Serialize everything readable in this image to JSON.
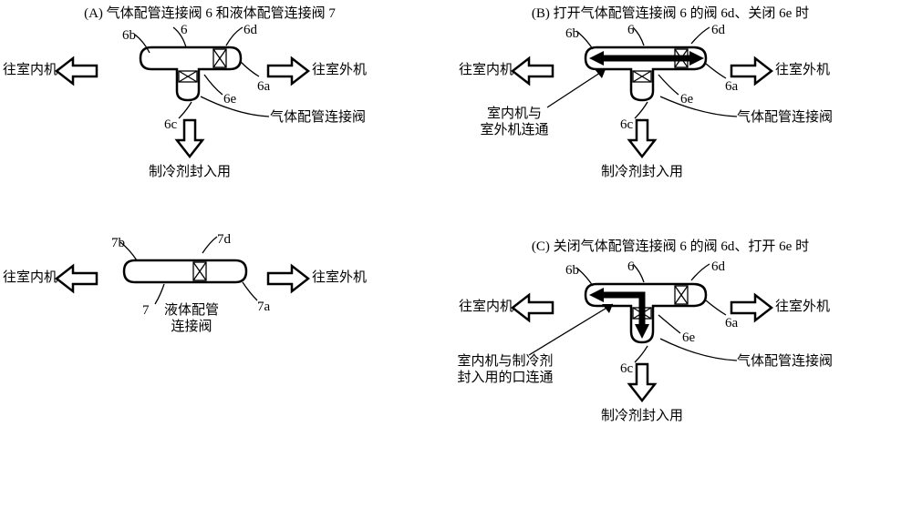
{
  "panelA": {
    "title": "(A) 气体配管连接阀 6 和液体配管连接阀 7",
    "left": "往室内机",
    "right": "往室外机",
    "down": "制冷剂封入用",
    "valveLabel": "气体配管连接阀",
    "parts": {
      "n6": "6",
      "n6a": "6a",
      "n6b": "6b",
      "n6c": "6c",
      "n6d": "6d",
      "n6e": "6e"
    }
  },
  "panelB": {
    "title": "(B) 打开气体配管连接阀 6 的阀 6d、关闭 6e 时",
    "left": "往室内机",
    "right": "往室外机",
    "down": "制冷剂封入用",
    "valveLabel": "气体配管连接阀",
    "flow": "室内机与\n室外机连通",
    "parts": {
      "n6": "6",
      "n6a": "6a",
      "n6b": "6b",
      "n6c": "6c",
      "n6d": "6d",
      "n6e": "6e"
    }
  },
  "panelC": {
    "title": "(C) 关闭气体配管连接阀 6 的阀 6d、打开 6e 时",
    "left": "往室内机",
    "right": "往室外机",
    "down": "制冷剂封入用",
    "valveLabel": "气体配管连接阀",
    "flow": "室内机与制冷剂\n封入用的口连通",
    "parts": {
      "n6": "6",
      "n6a": "6a",
      "n6b": "6b",
      "n6c": "6c",
      "n6d": "6d",
      "n6e": "6e"
    }
  },
  "liquid": {
    "left": "往室内机",
    "right": "往室外机",
    "caption": "液体配管\n连接阀",
    "parts": {
      "n7": "7",
      "n7b": "7b",
      "n7d": "7d",
      "n7a": "7a"
    }
  },
  "style": {
    "outerArrowFill": "#ffffff",
    "outerArrowStroke": "#000000"
  }
}
